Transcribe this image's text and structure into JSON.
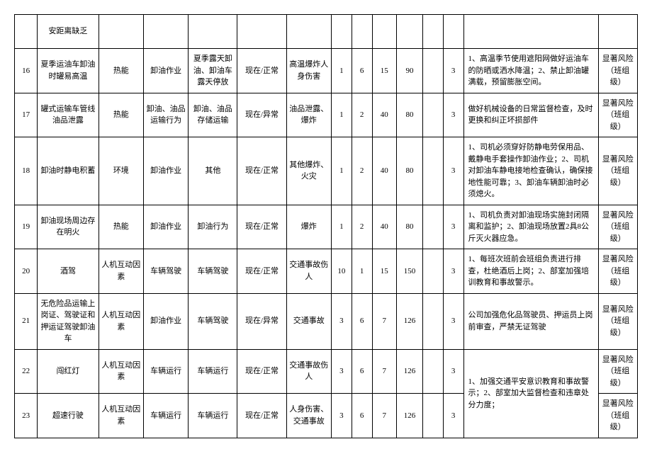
{
  "table": {
    "colors": {
      "border": "#000000",
      "background": "#ffffff",
      "text": "#000000"
    },
    "font_size": 11,
    "header_row": {
      "desc": "安距离缺乏"
    },
    "rows": [
      {
        "idx": "16",
        "desc": "夏季运油车卸油时罐易高温",
        "factor": "热能",
        "activity": "卸油作业",
        "scene": "夏季露天卸油、卸油车露天停放",
        "status": "现在/正常",
        "consequence": "高温爆炸人身伤害",
        "n1": "1",
        "n2": "6",
        "n3": "15",
        "n4": "90",
        "n5": "3",
        "measure": "1、高温季节使用遮阳网做好运油车的防晒或洒水降温；2、禁止卸油罐满载，预留膨胀空间。",
        "level": "显著风险（班组级）"
      },
      {
        "idx": "17",
        "desc": "罐式运输车管线油品泄露",
        "factor": "热能",
        "activity": "卸油、油品运输行为",
        "scene": "卸油、油品存储运输",
        "status": "现在/异常",
        "consequence": "油品泄露、爆炸",
        "n1": "1",
        "n2": "2",
        "n3": "40",
        "n4": "80",
        "n5": "3",
        "measure": "做好机械设备的日常监督检查，及时更换和纠正坏损部件",
        "level": "显著风险（班组级）"
      },
      {
        "idx": "18",
        "desc": "卸油时静电积蓄",
        "factor": "环境",
        "activity": "卸油作业",
        "scene": "其他",
        "status": "现在/正常",
        "consequence": "其他爆炸、火灾",
        "n1": "1",
        "n2": "2",
        "n3": "40",
        "n4": "80",
        "n5": "3",
        "measure": "1、司机必须穿好防静电劳保用品、戴静电手套操作卸油作业；2、司机对卸油车静电接地检查确认，确保接地性能可靠；3、卸油车辆卸油时必须熄火。",
        "level": "显著风险（班组级）"
      },
      {
        "idx": "19",
        "desc": "卸油现场周边存在明火",
        "factor": "热能",
        "activity": "卸油作业",
        "scene": "卸油行为",
        "status": "现在/正常",
        "consequence": "爆炸",
        "n1": "1",
        "n2": "2",
        "n3": "40",
        "n4": "80",
        "n5": "3",
        "measure": "1、司机负责对卸油现场实施封闭隔离和监护；2、卸油现场放置2具8公斤灭火器应急。",
        "level": "显著风险（班组级）"
      },
      {
        "idx": "20",
        "desc": "酒驾",
        "factor": "人机互动因素",
        "activity": "车辆驾驶",
        "scene": "车辆驾驶",
        "status": "现在/正常",
        "consequence": "交通事故伤人",
        "n1": "10",
        "n2": "1",
        "n3": "15",
        "n4": "150",
        "n5": "3",
        "measure": "1、每班次班前会班组负责进行排查，杜绝酒后上岗；2、部室加强培训教育和事故警示。",
        "level": "显著风险（班组级）"
      },
      {
        "idx": "21",
        "desc": "无危险品运输上岗证、驾驶证和押运证驾驶卸油车",
        "factor": "人机互动因素",
        "activity": "卸油作业",
        "scene": "车辆驾驶",
        "status": "现在/异常",
        "consequence": "交通事故",
        "n1": "3",
        "n2": "6",
        "n3": "7",
        "n4": "126",
        "n5": "3",
        "measure": "公司加强危化品驾驶员、押运员上岗前审查，严禁无证驾驶",
        "level": "显著风险（班组级）"
      },
      {
        "idx": "22",
        "desc": "闯红灯",
        "factor": "人机互动因素",
        "activity": "车辆运行",
        "scene": "车辆运行",
        "status": "现在/正常",
        "consequence": "交通事故伤人",
        "n1": "3",
        "n2": "6",
        "n3": "7",
        "n4": "126",
        "n5": "3",
        "measure_rowspan": true,
        "measure": "1、加强交通平安意识教育和事故警示；2、部室加大监督检查和违章处分力度；",
        "level": "显著风险（班组级）"
      },
      {
        "idx": "23",
        "desc": "超速行驶",
        "factor": "人机互动因素",
        "activity": "车辆运行",
        "scene": "车辆运行",
        "status": "现在/正常",
        "consequence": "人身伤害、交通事故",
        "n1": "3",
        "n2": "6",
        "n3": "7",
        "n4": "126",
        "n5": "3",
        "level": "显著风险（班组级）"
      }
    ]
  }
}
